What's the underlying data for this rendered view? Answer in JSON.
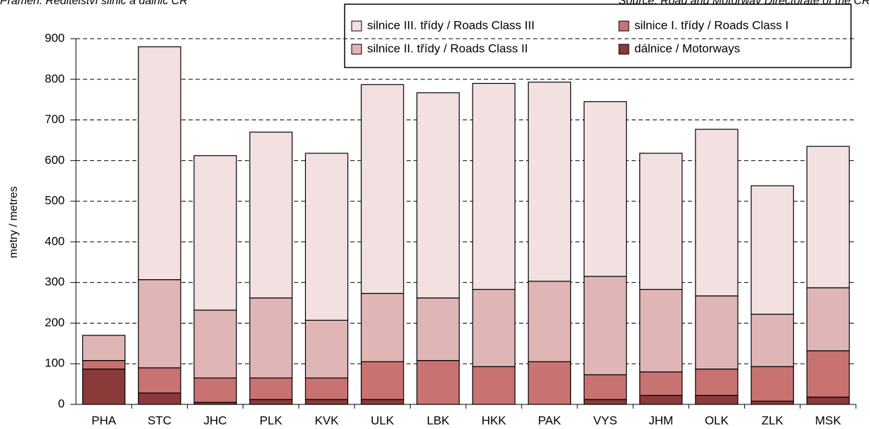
{
  "chart_data": {
    "type": "stacked_bar",
    "source_cz": "Pramen: Ředitelství silnic a dálnic ČR",
    "source_en": "Source: Road and Motorway Directorate of the CR",
    "y_label": "metry / metres",
    "categories": [
      "PHA",
      "STC",
      "JHC",
      "PLK",
      "KVK",
      "ULK",
      "LBK",
      "HKK",
      "PAK",
      "VYS",
      "JHM",
      "OLK",
      "ZLK",
      "MSK"
    ],
    "series": [
      {
        "name": "dálnice / Motorways",
        "color": "#8b3a3a",
        "values": [
          87,
          28,
          5,
          12,
          12,
          12,
          0,
          0,
          0,
          12,
          22,
          22,
          8,
          18
        ]
      },
      {
        "name": "silnice I. třídy / Roads Class I",
        "color": "#c87272",
        "values": [
          21,
          62,
          60,
          53,
          53,
          93,
          108,
          93,
          105,
          61,
          58,
          65,
          85,
          114
        ]
      },
      {
        "name": "silnice II. třídy / Roads Class II",
        "color": "#dfb5b5",
        "values": [
          62,
          217,
          167,
          197,
          142,
          168,
          154,
          190,
          198,
          242,
          203,
          180,
          129,
          155
        ]
      },
      {
        "name": "silnice III. třídy / Roads Class III",
        "color": "#f3e0e0",
        "values": [
          0,
          573,
          380,
          408,
          411,
          514,
          505,
          507,
          490,
          430,
          335,
          410,
          316,
          348
        ]
      }
    ],
    "ylim": [
      0,
      900
    ],
    "yticks": [
      0,
      100,
      200,
      300,
      400,
      500,
      600,
      700,
      800,
      900
    ],
    "grid": true
  }
}
